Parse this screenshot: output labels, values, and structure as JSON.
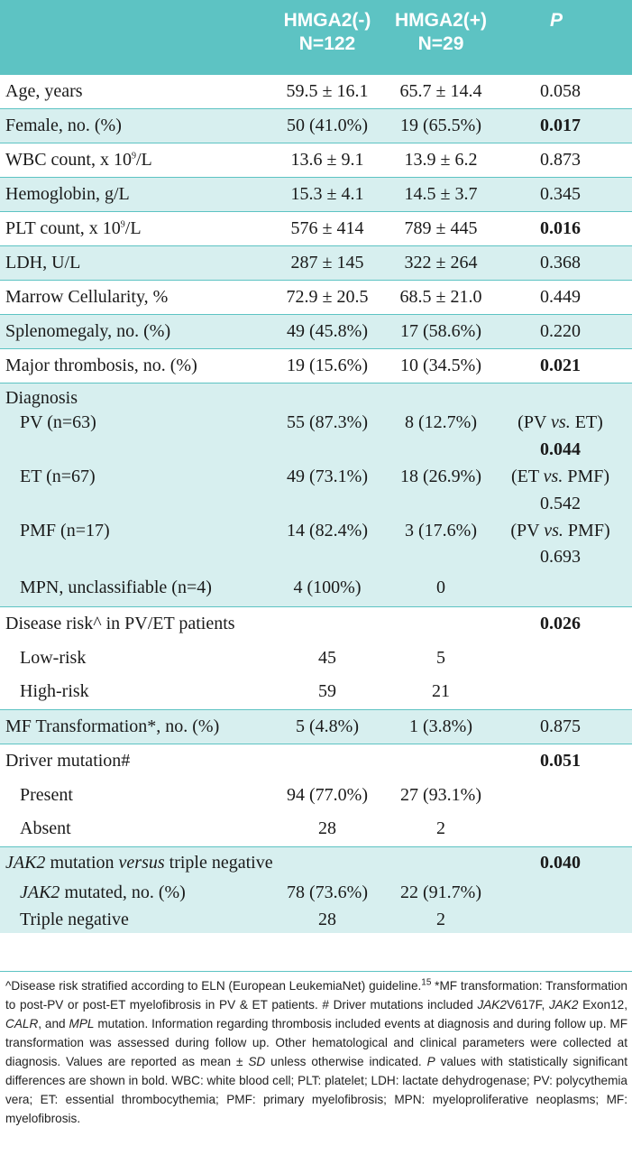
{
  "header": {
    "col1": "",
    "col2_line1": "HMGA2(-)",
    "col2_line2": "N=122",
    "col3_line1": "HMGA2(+)",
    "col3_line2": "N=29",
    "col4": "P"
  },
  "rows": {
    "age": {
      "label": "Age, years",
      "a": "59.5 ± 16.1",
      "b": "65.7 ± 14.4",
      "p": "0.058"
    },
    "female": {
      "label": "Female, no. (%)",
      "a": "50 (41.0%)",
      "b": "19 (65.5%)",
      "p": "0.017"
    },
    "wbc": {
      "label_pre": "WBC count, x 10",
      "label_sup": "9",
      "label_post": "/L",
      "a": "13.6 ± 9.1",
      "b": "13.9 ± 6.2",
      "p": "0.873"
    },
    "hgb": {
      "label": "Hemoglobin, g/L",
      "a": "15.3 ± 4.1",
      "b": "14.5 ± 3.7",
      "p": "0.345"
    },
    "plt": {
      "label_pre": "PLT count, x 10",
      "label_sup": "9",
      "label_post": "/L",
      "a": "576 ± 414",
      "b": "789 ± 445",
      "p": "0.016"
    },
    "ldh": {
      "label": "LDH, U/L",
      "a": "287 ± 145",
      "b": "322 ± 264",
      "p": "0.368"
    },
    "marrow": {
      "label": "Marrow Cellularity, %",
      "a": "72.9 ± 20.5",
      "b": "68.5 ± 21.0",
      "p": "0.449"
    },
    "spleno": {
      "label": "Splenomegaly, no. (%)",
      "a": "49 (45.8%)",
      "b": "17 (58.6%)",
      "p": "0.220"
    },
    "thromb": {
      "label": "Major thrombosis, no. (%)",
      "a": "19 (15.6%)",
      "b": "10 (34.5%)",
      "p": "0.021"
    },
    "diagnosis": {
      "label": "Diagnosis"
    },
    "pv": {
      "label": "PV (n=63)",
      "a": "55 (87.3%)",
      "b": "8 (12.7%)",
      "p_pre": "(PV ",
      "p_it": "vs.",
      "p_post": " ET)"
    },
    "pv_val": {
      "p": "0.044"
    },
    "et": {
      "label": "ET (n=67)",
      "a": "49 (73.1%)",
      "b": "18 (26.9%)",
      "p_pre": "(ET ",
      "p_it": "vs.",
      "p_post": " PMF)"
    },
    "et_val": {
      "p": "0.542"
    },
    "pmf": {
      "label": "PMF (n=17)",
      "a": "14 (82.4%)",
      "b": "3 (17.6%)",
      "p_pre": "(PV ",
      "p_it": "vs.",
      "p_post": " PMF)"
    },
    "pmf_val": {
      "p": "0.693"
    },
    "mpn": {
      "label": "MPN, unclassifiable (n=4)",
      "a": "4 (100%)",
      "b": "0"
    },
    "risk": {
      "label": "Disease risk^ in PV/ET patients",
      "p": "0.026"
    },
    "low": {
      "label": "Low-risk",
      "a": "45",
      "b": "5"
    },
    "high": {
      "label": "High-risk",
      "a": "59",
      "b": "21"
    },
    "mf": {
      "label": "MF Transformation*, no. (%)",
      "a": "5 (4.8%)",
      "b": "1 (3.8%)",
      "p": "0.875"
    },
    "driver": {
      "label": "Driver mutation#",
      "p": "0.051"
    },
    "present": {
      "label": "Present",
      "a": "94 (77.0%)",
      "b": "27 (93.1%)"
    },
    "absent": {
      "label": "Absent",
      "a": "28",
      "b": "2"
    },
    "jak2vs": {
      "label_it1": "JAK2",
      "label_mid": " mutation ",
      "label_it2": "versus",
      "label_post": " triple negative",
      "p": "0.040"
    },
    "jak2mut": {
      "label_it": "JAK2",
      "label_post": " mutated, no. (%)",
      "a": "78 (73.6%)",
      "b": "22 (91.7%)"
    },
    "triple": {
      "label": "Triple negative",
      "a": "28",
      "b": "2"
    }
  },
  "footnote": {
    "s1": "^Disease risk stratified according to ELN (European LeukemiaNet) guideline.",
    "s1_sup": "15",
    "s2": " *MF transformation: Transformation to post-PV or post-ET myelofibrosis in PV & ET patients. # Driver mutations included ",
    "jak2a": "JAK2",
    "s3": "V617F, ",
    "jak2b": "JAK2",
    "s4": " Exon12, ",
    "calr": "CALR",
    "s5": ", and ",
    "mpl": "MPL",
    "s6": " mutation. Information regarding thrombosis included events at diagnosis and during follow up. MF transformation was assessed during follow up. Other hematological and clinical parameters were collected at diagnosis. Values are reported as mean ± ",
    "sd": "SD",
    "s7": " unless otherwise indicated. ",
    "p": "P",
    "s8": " values with statistically significant differences are shown in bold. WBC: white blood cell; PLT: platelet; LDH: lactate dehydrogenase; PV: polycythemia vera; ET: essential thrombocythemia; PMF: primary myelofibrosis; MPN: myeloproliferative neoplasms; MF: myelofibrosis."
  },
  "colors": {
    "header_bg": "#5dc3c3",
    "tint_bg": "#d7efef",
    "rule": "#5dc3c3"
  }
}
